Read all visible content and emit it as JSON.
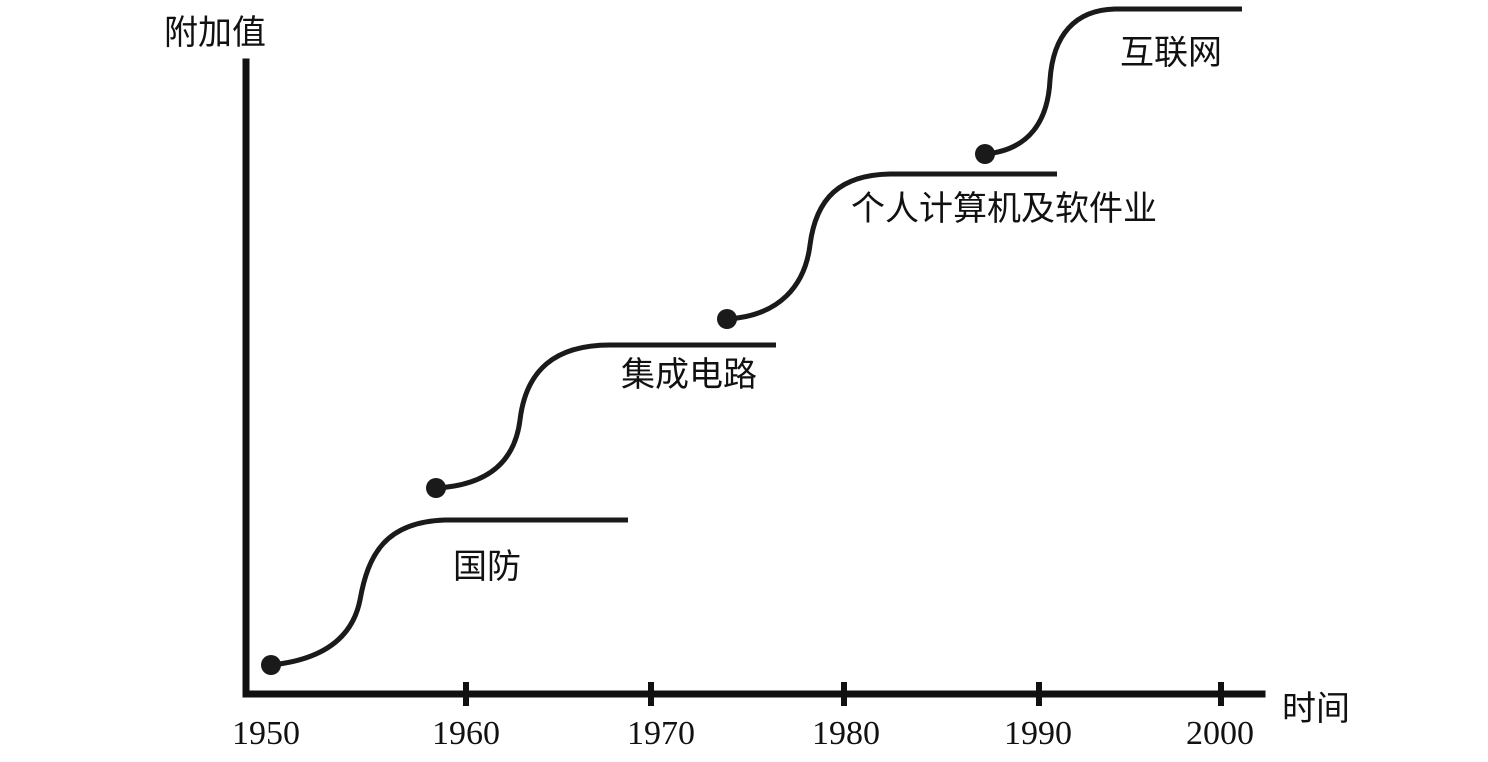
{
  "axes": {
    "y_label": "附加值",
    "x_label": "时间",
    "x_ticks": [
      "1950",
      "1960",
      "1970",
      "1980",
      "1990",
      "2000"
    ]
  },
  "stages": [
    {
      "label": "国防"
    },
    {
      "label": "集成电路"
    },
    {
      "label": "个人计算机及软件业"
    },
    {
      "label": "互联网"
    }
  ],
  "colors": {
    "ink": "#111111"
  }
}
